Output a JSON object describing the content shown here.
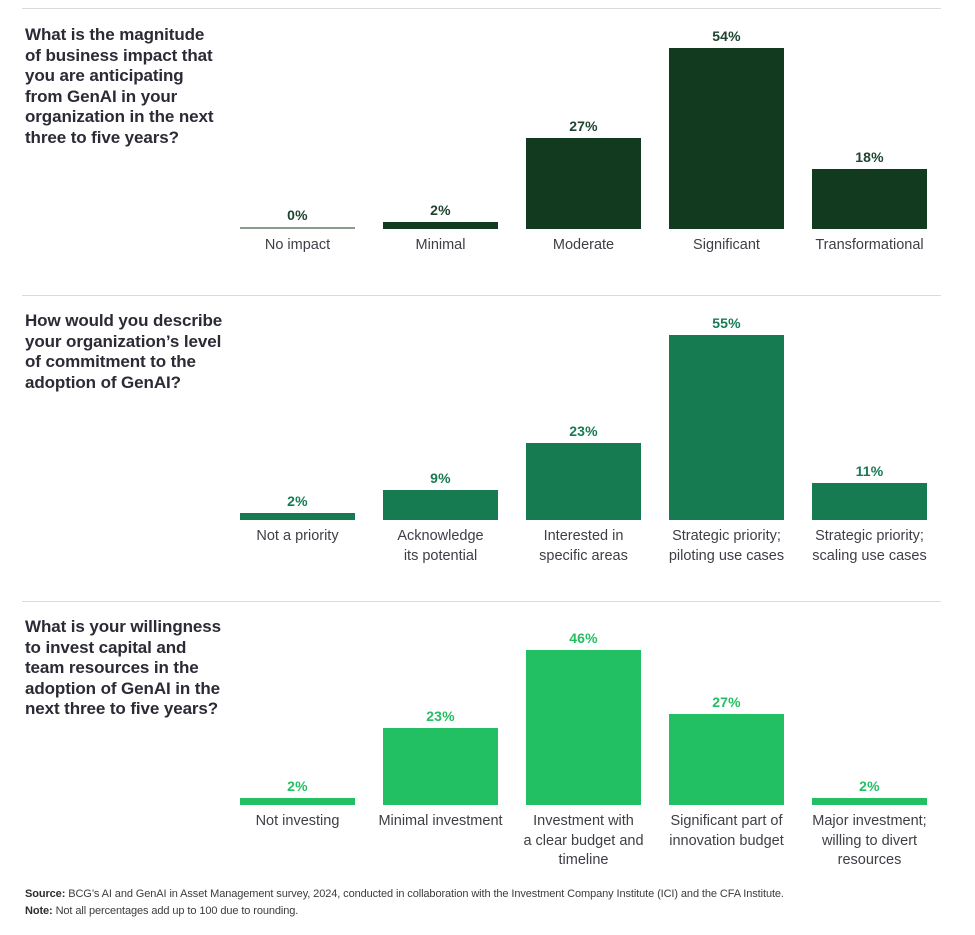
{
  "page": {
    "background": "#FFFFFF",
    "divider_color": "#DBDBDB",
    "title_color": "#2B2B36",
    "category_label_color": "#3E3E46",
    "zero_bar_color": "#8A9C8E"
  },
  "chart_data": [
    {
      "type": "bar",
      "title": "What is the magnitude\nof business impact that\nyou are anticipating\nfrom GenAI in your\norganization in the next\nthree to five years?",
      "categories": [
        "No impact",
        "Minimal",
        "Moderate",
        "Significant",
        "Transformational"
      ],
      "values": [
        0,
        2,
        27,
        54,
        18
      ],
      "unit": "%",
      "bar_color": "#123A1F",
      "value_label_color": "#1F4430",
      "ylim": [
        0,
        60
      ],
      "grid": false,
      "legend": false,
      "value_labels_position": "above-bars"
    },
    {
      "type": "bar",
      "title": "How would you describe\nyour organization’s level\nof commitment to the\nadoption of GenAI?",
      "categories": [
        "Not a priority",
        "Acknowledge\nits potential",
        "Interested in\nspecific areas",
        "Strategic priority;\npiloting use cases",
        "Strategic priority;\nscaling use cases"
      ],
      "values": [
        2,
        9,
        23,
        55,
        11
      ],
      "unit": "%",
      "bar_color": "#177B52",
      "value_label_color": "#177B52",
      "ylim": [
        0,
        60
      ],
      "grid": false,
      "legend": false,
      "value_labels_position": "above-bars"
    },
    {
      "type": "bar",
      "title": "What is your willingness\nto invest capital and\nteam resources in the\nadoption of GenAI in the\nnext three to five years?",
      "categories": [
        "Not investing",
        "Minimal investment",
        "Investment with\na clear budget and\ntimeline",
        "Significant part of\ninnovation budget",
        "Major investment;\nwilling to divert\nresources"
      ],
      "values": [
        2,
        23,
        46,
        27,
        2
      ],
      "unit": "%",
      "bar_color": "#22BF63",
      "value_label_color": "#22BF63",
      "ylim": [
        0,
        60
      ],
      "grid": false,
      "legend": false,
      "value_labels_position": "above-bars"
    }
  ],
  "footer": {
    "source_label": "Source:",
    "source_text": " BCG’s AI and GenAI in Asset Management survey, 2024, conducted in collaboration with the Investment Company Institute (ICI) and the CFA Institute.",
    "note_label": "Note:",
    "note_text": " Not all percentages add up to 100 due to rounding."
  }
}
